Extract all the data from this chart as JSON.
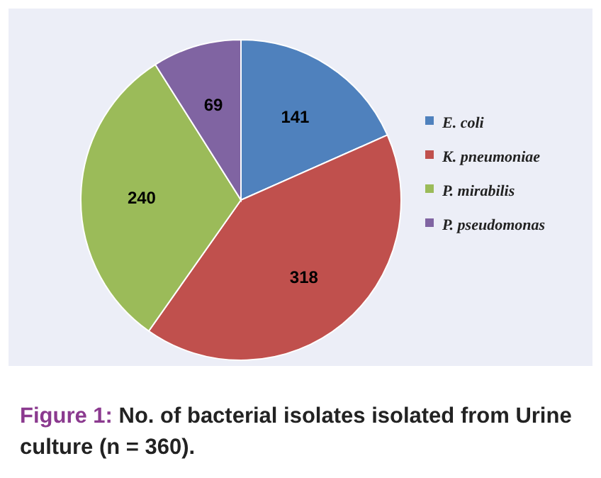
{
  "chart_data": {
    "type": "pie",
    "title": "Figure 1: No.  of bacterial isolates isolated from Urine culture (n = 360).",
    "categories": [
      "E. coli",
      "K. pneumoniae",
      "P. mirabilis",
      "P. pseudomonas"
    ],
    "values": [
      141,
      318,
      240,
      69
    ],
    "colors": [
      "#4f81bd",
      "#c0504d",
      "#9bbb59",
      "#8064a2"
    ],
    "data_labels": true,
    "legend": "right"
  }
}
